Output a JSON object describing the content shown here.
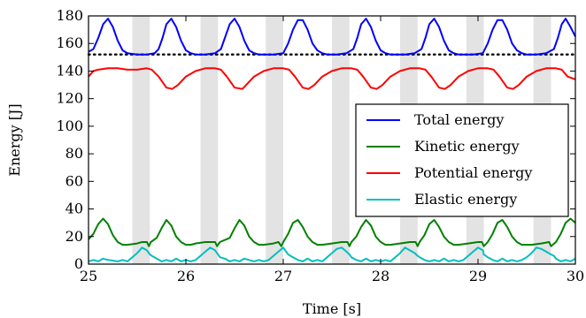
{
  "chart_data": {
    "type": "line",
    "title": "",
    "xlabel": "Time [s]",
    "ylabel": "Energy [J]",
    "xlim": [
      25,
      30
    ],
    "ylim": [
      0,
      180
    ],
    "xticks": [
      25,
      26,
      27,
      28,
      29,
      30
    ],
    "yticks": [
      0,
      20,
      40,
      60,
      80,
      100,
      120,
      140,
      160,
      180
    ],
    "grid": false,
    "legend_position": "center-right",
    "shaded_intervals": [
      [
        25.45,
        25.63
      ],
      [
        26.15,
        26.33
      ],
      [
        26.82,
        27.0
      ],
      [
        27.5,
        27.68
      ],
      [
        28.2,
        28.38
      ],
      [
        28.88,
        29.06
      ],
      [
        29.57,
        29.75
      ]
    ],
    "reference_line": {
      "y": 152,
      "style": "dotted",
      "color": "#000000"
    },
    "series": [
      {
        "name": "Total energy",
        "color": "#0000ff",
        "x": [
          25.0,
          25.05,
          25.1,
          25.15,
          25.2,
          25.25,
          25.3,
          25.35,
          25.4,
          25.5,
          25.6,
          25.68,
          25.72,
          25.76,
          25.8,
          25.85,
          25.9,
          25.95,
          26.0,
          26.05,
          26.1,
          26.2,
          26.3,
          26.36,
          26.4,
          26.45,
          26.5,
          26.55,
          26.6,
          26.65,
          26.7,
          26.75,
          26.8,
          26.9,
          27.0,
          27.05,
          27.1,
          27.15,
          27.2,
          27.25,
          27.3,
          27.35,
          27.4,
          27.45,
          27.55,
          27.65,
          27.72,
          27.76,
          27.8,
          27.85,
          27.9,
          27.95,
          28.0,
          28.05,
          28.1,
          28.15,
          28.25,
          28.35,
          28.42,
          28.46,
          28.5,
          28.55,
          28.6,
          28.65,
          28.7,
          28.75,
          28.8,
          28.85,
          28.95,
          29.05,
          29.1,
          29.15,
          29.2,
          29.25,
          29.3,
          29.35,
          29.4,
          29.45,
          29.5,
          29.6,
          29.7,
          29.78,
          29.82,
          29.86,
          29.9,
          29.95,
          30.0
        ],
        "y": [
          154,
          156,
          164,
          174,
          178,
          172,
          162,
          155,
          153,
          152,
          152,
          153,
          156,
          164,
          174,
          178,
          172,
          162,
          155,
          153,
          152,
          152,
          153,
          156,
          164,
          174,
          178,
          172,
          162,
          155,
          153,
          152,
          152,
          152,
          153,
          160,
          170,
          177,
          177,
          170,
          160,
          155,
          153,
          152,
          152,
          153,
          156,
          164,
          174,
          178,
          172,
          162,
          155,
          153,
          152,
          152,
          152,
          153,
          156,
          164,
          174,
          178,
          172,
          162,
          155,
          153,
          152,
          152,
          152,
          153,
          160,
          170,
          177,
          177,
          170,
          160,
          155,
          153,
          152,
          152,
          153,
          156,
          164,
          174,
          178,
          172,
          165
        ]
      },
      {
        "name": "Kinetic energy",
        "color": "#008000",
        "x": [
          25.0,
          25.05,
          25.1,
          25.15,
          25.2,
          25.25,
          25.3,
          25.35,
          25.4,
          25.5,
          25.55,
          25.6,
          25.62,
          25.64,
          25.7,
          25.75,
          25.8,
          25.85,
          25.9,
          25.95,
          26.0,
          26.05,
          26.1,
          26.2,
          26.25,
          26.3,
          26.32,
          26.35,
          26.45,
          26.5,
          26.55,
          26.6,
          26.65,
          26.7,
          26.75,
          26.8,
          26.9,
          26.95,
          26.98,
          27.0,
          27.05,
          27.1,
          27.15,
          27.2,
          27.25,
          27.3,
          27.35,
          27.4,
          27.5,
          27.6,
          27.66,
          27.68,
          27.7,
          27.75,
          27.8,
          27.85,
          27.9,
          27.95,
          28.0,
          28.05,
          28.1,
          28.2,
          28.3,
          28.36,
          28.38,
          28.4,
          28.45,
          28.5,
          28.55,
          28.6,
          28.65,
          28.7,
          28.75,
          28.8,
          28.9,
          29.0,
          29.04,
          29.06,
          29.1,
          29.15,
          29.2,
          29.25,
          29.3,
          29.35,
          29.4,
          29.45,
          29.55,
          29.65,
          29.73,
          29.75,
          29.8,
          29.85,
          29.9,
          29.95,
          30.0
        ],
        "y": [
          18,
          22,
          29,
          33,
          29,
          21,
          16,
          14,
          14,
          15,
          16,
          16,
          13,
          16,
          19,
          26,
          32,
          28,
          20,
          16,
          14,
          14,
          15,
          16,
          16,
          16,
          13,
          16,
          19,
          26,
          32,
          28,
          20,
          16,
          14,
          14,
          15,
          16,
          13,
          16,
          22,
          30,
          32,
          27,
          20,
          16,
          14,
          14,
          15,
          16,
          16,
          13,
          16,
          20,
          27,
          32,
          28,
          20,
          16,
          14,
          14,
          15,
          16,
          16,
          13,
          16,
          21,
          29,
          32,
          27,
          20,
          16,
          14,
          14,
          15,
          16,
          16,
          13,
          16,
          22,
          30,
          32,
          27,
          20,
          16,
          14,
          14,
          15,
          16,
          13,
          16,
          22,
          30,
          33,
          30
        ]
      },
      {
        "name": "Potential energy",
        "color": "#ff0000",
        "x": [
          25.0,
          25.05,
          25.1,
          25.2,
          25.3,
          25.4,
          25.5,
          25.6,
          25.65,
          25.72,
          25.8,
          25.86,
          25.92,
          26.0,
          26.1,
          26.2,
          26.3,
          26.36,
          26.42,
          26.5,
          26.58,
          26.62,
          26.7,
          26.8,
          26.9,
          27.0,
          27.06,
          27.12,
          27.2,
          27.26,
          27.32,
          27.4,
          27.5,
          27.6,
          27.7,
          27.76,
          27.82,
          27.9,
          27.96,
          28.02,
          28.1,
          28.2,
          28.3,
          28.4,
          28.46,
          28.52,
          28.6,
          28.66,
          28.72,
          28.8,
          28.9,
          29.0,
          29.1,
          29.16,
          29.22,
          29.3,
          29.36,
          29.42,
          29.5,
          29.6,
          29.7,
          29.8,
          29.86,
          29.92,
          30.0
        ],
        "y": [
          136,
          140,
          141,
          142,
          142,
          141,
          141,
          142,
          141,
          136,
          128,
          127,
          130,
          136,
          140,
          142,
          142,
          141,
          136,
          128,
          127,
          130,
          136,
          140,
          142,
          142,
          141,
          136,
          128,
          127,
          130,
          136,
          140,
          142,
          142,
          141,
          136,
          128,
          127,
          130,
          136,
          140,
          142,
          142,
          141,
          136,
          128,
          127,
          130,
          136,
          140,
          142,
          142,
          141,
          136,
          128,
          127,
          130,
          136,
          140,
          142,
          142,
          141,
          136,
          134
        ]
      },
      {
        "name": "Elastic energy",
        "color": "#00bfbf",
        "x": [
          25.0,
          25.05,
          25.1,
          25.15,
          25.2,
          25.3,
          25.35,
          25.4,
          25.45,
          25.5,
          25.55,
          25.6,
          25.63,
          25.65,
          25.7,
          25.75,
          25.8,
          25.85,
          25.9,
          25.95,
          26.0,
          26.05,
          26.1,
          26.15,
          26.2,
          26.25,
          26.3,
          26.33,
          26.35,
          26.4,
          26.45,
          26.5,
          26.55,
          26.6,
          26.7,
          26.75,
          26.8,
          26.85,
          26.9,
          26.95,
          27.0,
          27.02,
          27.05,
          27.1,
          27.15,
          27.2,
          27.25,
          27.3,
          27.35,
          27.4,
          27.45,
          27.5,
          27.55,
          27.6,
          27.65,
          27.68,
          27.7,
          27.75,
          27.8,
          27.85,
          27.9,
          27.95,
          28.0,
          28.05,
          28.1,
          28.15,
          28.2,
          28.25,
          28.3,
          28.35,
          28.38,
          28.4,
          28.45,
          28.5,
          28.55,
          28.6,
          28.65,
          28.7,
          28.75,
          28.8,
          28.85,
          28.9,
          28.95,
          29.0,
          29.05,
          29.06,
          29.1,
          29.15,
          29.2,
          29.25,
          29.3,
          29.35,
          29.4,
          29.45,
          29.5,
          29.55,
          29.6,
          29.65,
          29.7,
          29.75,
          29.78,
          29.8,
          29.85,
          29.9,
          29.95,
          30.0
        ],
        "y": [
          2,
          3,
          2,
          4,
          3,
          2,
          3,
          2,
          5,
          8,
          12,
          10,
          7,
          6,
          4,
          2,
          3,
          2,
          4,
          2,
          3,
          2,
          3,
          6,
          9,
          12,
          10,
          7,
          5,
          4,
          2,
          3,
          2,
          4,
          2,
          3,
          2,
          3,
          6,
          9,
          12,
          10,
          7,
          5,
          3,
          2,
          4,
          2,
          3,
          2,
          5,
          8,
          11,
          12,
          9,
          7,
          5,
          3,
          2,
          4,
          2,
          3,
          2,
          3,
          2,
          5,
          8,
          12,
          10,
          8,
          6,
          5,
          3,
          2,
          3,
          2,
          4,
          2,
          3,
          2,
          3,
          6,
          9,
          12,
          10,
          7,
          5,
          3,
          2,
          4,
          2,
          3,
          2,
          3,
          5,
          8,
          12,
          11,
          9,
          7,
          6,
          4,
          2,
          3,
          2,
          4
        ]
      }
    ]
  }
}
